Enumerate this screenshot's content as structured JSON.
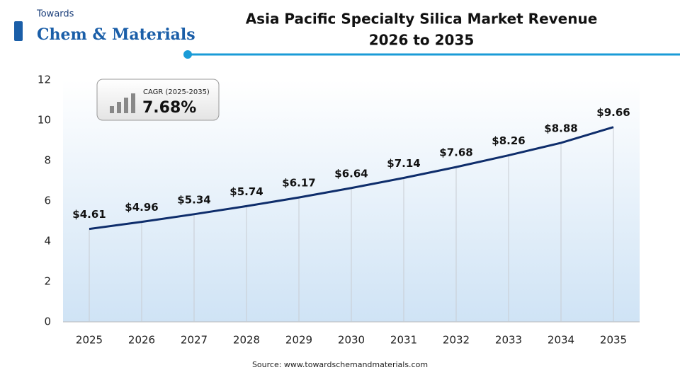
{
  "logo": {
    "line1": "Towards",
    "line2": "Chem & Materials"
  },
  "chart_data": {
    "type": "line",
    "title": [
      "Asia Pacific Specialty Silica Market Revenue",
      "2026 to 2035"
    ],
    "categories": [
      "2025",
      "2026",
      "2027",
      "2028",
      "2029",
      "2030",
      "2031",
      "2032",
      "2033",
      "2034",
      "2035"
    ],
    "series": [
      {
        "color": "#0e2d6b",
        "values": [
          4.61,
          4.96,
          5.34,
          5.74,
          6.17,
          6.64,
          7.14,
          7.68,
          8.26,
          8.88,
          9.66
        ],
        "value_labels": [
          "$4.61",
          "$4.96",
          "$5.34",
          "$5.74",
          "$6.17",
          "$6.64",
          "$7.14",
          "$7.68",
          "$8.26",
          "$8.88",
          "$9.66"
        ]
      }
    ],
    "ylim": [
      0,
      12
    ],
    "yticks": [
      0,
      2,
      4,
      6,
      8,
      10,
      12
    ],
    "annotation": {
      "label": "CAGR (2025-2035)",
      "text": "7.68%"
    },
    "source": "Source: www.towardschemandmaterials.com"
  }
}
